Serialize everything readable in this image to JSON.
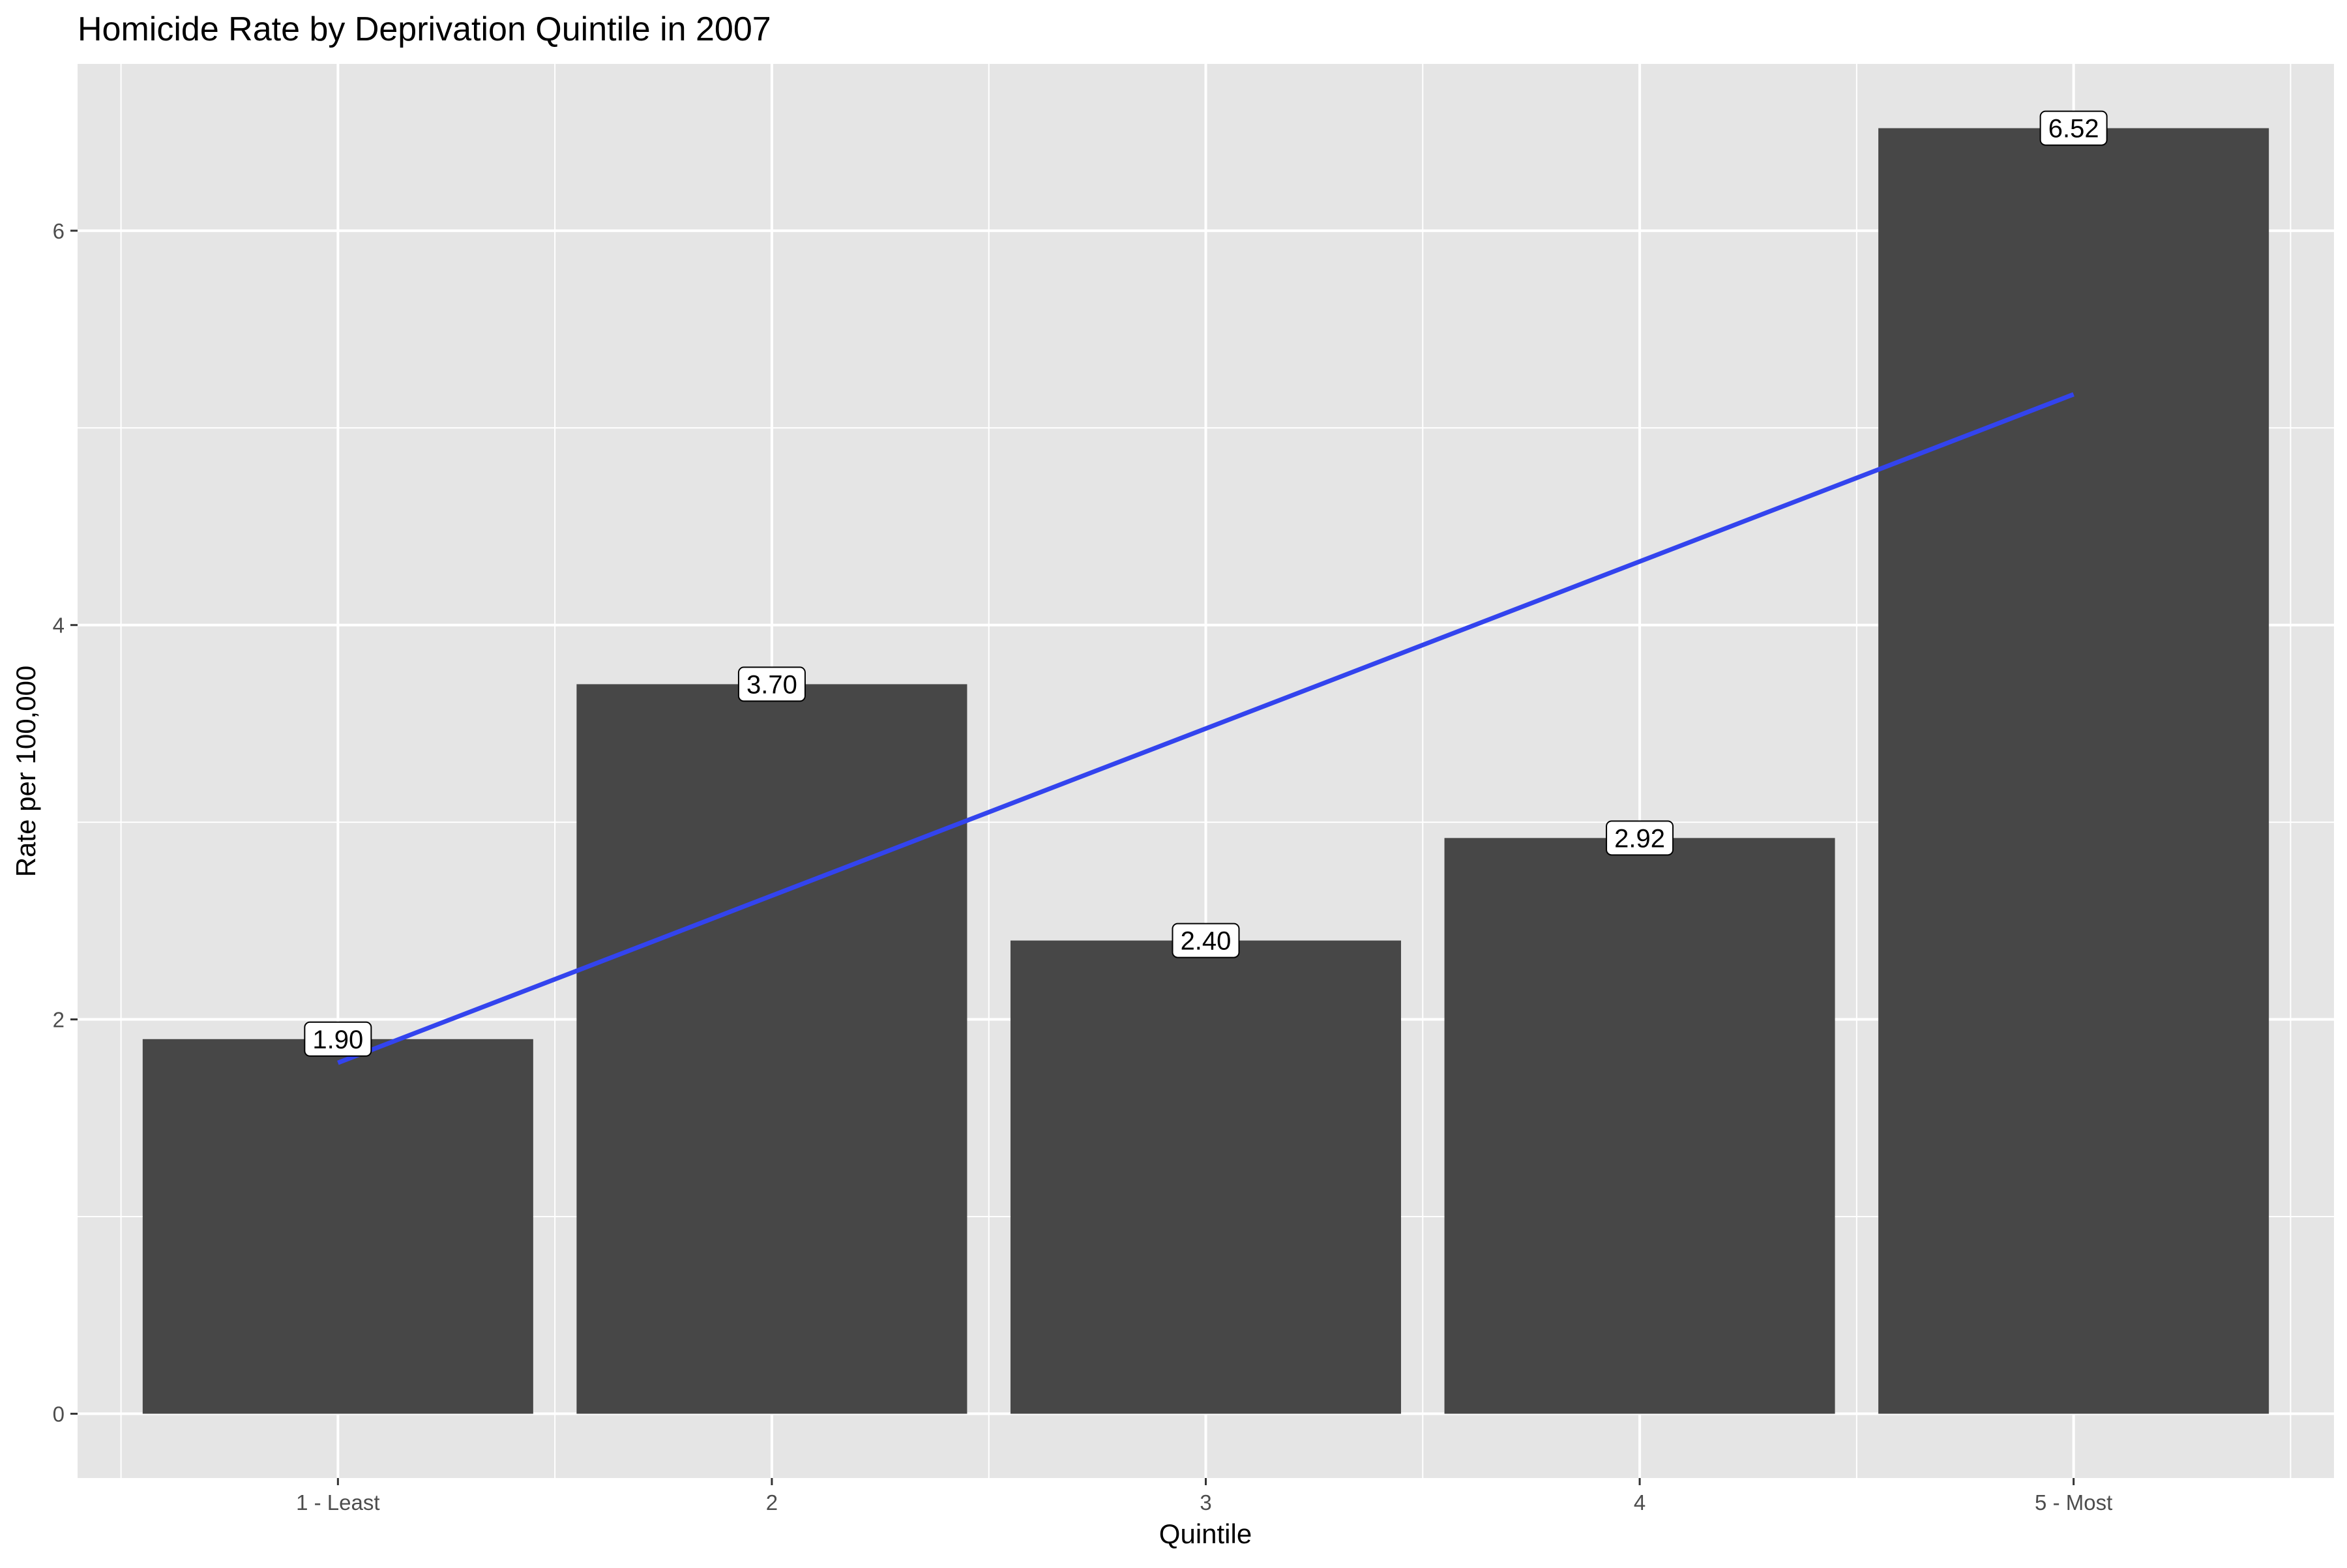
{
  "chart_data": {
    "type": "bar",
    "title": "Homicide Rate by Deprivation Quintile in 2007",
    "xlabel": "Quintile",
    "ylabel": "Rate per 100,000",
    "categories": [
      "1 - Least",
      "2",
      "3",
      "4",
      "5 - Most"
    ],
    "values": [
      1.9,
      3.7,
      2.4,
      2.92,
      6.52
    ],
    "data_labels": [
      "1.90",
      "3.70",
      "2.40",
      "2.92",
      "6.52"
    ],
    "yticks": [
      0,
      2,
      4,
      6
    ],
    "ylim": [
      -0.326,
      6.846
    ],
    "grid": true,
    "legend": "none",
    "trend_line": {
      "type": "linear-fit",
      "x": [
        1,
        5
      ],
      "y": [
        1.78,
        5.17
      ],
      "color": "#3344ee"
    },
    "colors": {
      "bar": "#474747",
      "panel_background": "#e5e5e5",
      "grid": "#ffffff",
      "label_background": "#ffffff"
    }
  }
}
